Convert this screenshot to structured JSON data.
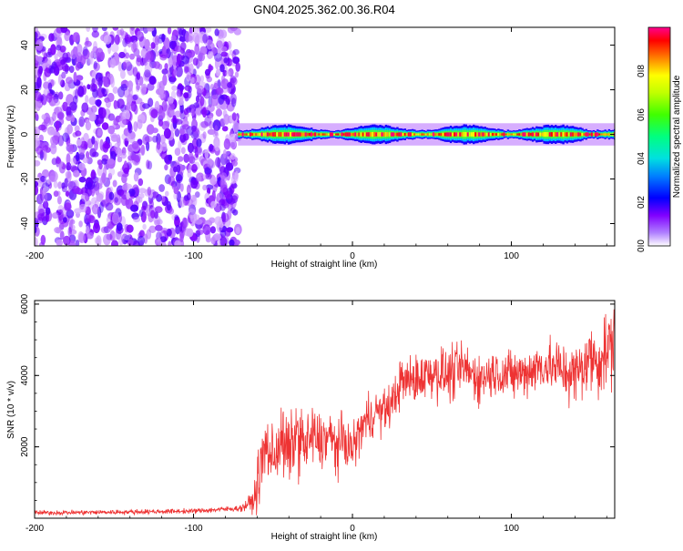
{
  "page_title": "GN04.2025.362.00.36.R04",
  "chart_data": [
    {
      "type": "heatmap",
      "title": "GN04.2025.362.00.36.R04",
      "xlabel": "Height of straight line (km)",
      "ylabel": "Frequency (Hz)",
      "xlim": [
        -200,
        165
      ],
      "ylim": [
        -50,
        48
      ],
      "xticks": [
        -200,
        -100,
        0,
        100
      ],
      "xtick_labels": [
        "-200",
        "-100",
        "0",
        "100"
      ],
      "yticks": [
        -40,
        -20,
        0,
        20,
        40
      ],
      "ytick_labels": [
        "-40",
        "-20",
        "0",
        "20",
        "40"
      ],
      "noise_region_x": [
        -200,
        -72
      ],
      "signal_region_x": [
        -72,
        165
      ],
      "signal_center_freq": 0,
      "colorbar": {
        "label": "Normalized spectral amplitude",
        "range": [
          0,
          1
        ],
        "ticks": [
          0.0,
          0.2,
          0.4,
          0.6,
          0.8
        ],
        "tick_labels": [
          "0.0",
          "0.2",
          "0.4",
          "0.6",
          "0.8"
        ],
        "colormap": [
          "#ffffff",
          "#8000ff",
          "#0000ff",
          "#00c0ff",
          "#00ff80",
          "#80ff00",
          "#ffff00",
          "#ff8000",
          "#ff0000",
          "#ff0080"
        ]
      }
    },
    {
      "type": "line",
      "xlabel": "Height of straight line (km)",
      "ylabel": "SNR (10 * v/v)",
      "xlim": [
        -200,
        165
      ],
      "ylim": [
        0,
        6100
      ],
      "xticks": [
        -200,
        -100,
        0,
        100
      ],
      "xtick_labels": [
        "-200",
        "-100",
        "0",
        "100"
      ],
      "yticks": [
        2000,
        4000,
        6000
      ],
      "ytick_labels": [
        "2000",
        "4000",
        "6000"
      ],
      "series": [
        {
          "name": "SNR",
          "color": "#ee3333",
          "x": [
            -200,
            -150,
            -100,
            -70,
            -62,
            -58,
            -55,
            -50,
            -45,
            -40,
            -35,
            -30,
            -25,
            -20,
            -15,
            -10,
            -5,
            0,
            5,
            10,
            15,
            20,
            25,
            30,
            40,
            50,
            60,
            70,
            80,
            90,
            100,
            110,
            120,
            130,
            140,
            150,
            155,
            160,
            165
          ],
          "values": [
            150,
            170,
            200,
            280,
            500,
            1300,
            2000,
            1700,
            2200,
            1800,
            2400,
            2000,
            2300,
            2100,
            2300,
            2000,
            2200,
            1900,
            2500,
            2800,
            3000,
            3000,
            3200,
            3800,
            3900,
            4100,
            4000,
            4200,
            3900,
            4100,
            4000,
            4100,
            4300,
            4200,
            4000,
            4500,
            4400,
            4700,
            5000
          ],
          "noise_amplitude": [
            100,
            100,
            100,
            120,
            500,
            1500,
            1400,
            1300,
            1500,
            1400,
            1500,
            1300,
            1300,
            1200,
            1200,
            1100,
            1100,
            900,
            1000,
            1000,
            900,
            900,
            900,
            1000,
            1000,
            1100,
            1100,
            1100,
            1000,
            1000,
            1000,
            1000,
            1100,
            1200,
            1300,
            1400,
            1500,
            1600,
            1700
          ]
        }
      ]
    }
  ]
}
